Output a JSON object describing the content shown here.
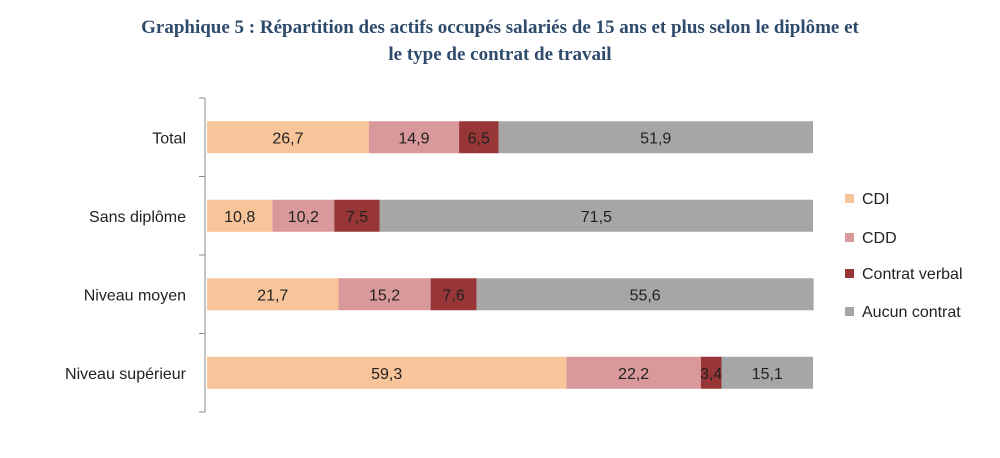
{
  "chart_data": {
    "type": "bar",
    "orientation": "horizontal",
    "stacked": true,
    "title_line1": "Graphique 5 : Répartition des actifs occupés salariés de 15 ans et plus selon le diplôme et",
    "title_line2": "le type de contrat de travail",
    "categories": [
      "Total",
      "Sans diplôme",
      "Niveau moyen",
      "Niveau supérieur"
    ],
    "series": [
      {
        "name": "CDI",
        "color": "#f8c49a",
        "values": [
          26.7,
          10.8,
          21.7,
          59.3
        ],
        "labels": [
          "26,7",
          "10,8",
          "21,7",
          "59,3"
        ]
      },
      {
        "name": "CDD",
        "color": "#d9989a",
        "values": [
          14.9,
          10.2,
          15.2,
          22.2
        ],
        "labels": [
          "14,9",
          "10,2",
          "15,2",
          "22,2"
        ]
      },
      {
        "name": "Contrat verbal",
        "color": "#983536",
        "values": [
          6.5,
          7.5,
          7.6,
          3.4
        ],
        "labels": [
          "6,5",
          "7,5",
          "7,6",
          "3,4"
        ]
      },
      {
        "name": "Aucun contrat",
        "color": "#a6a6a6",
        "values": [
          51.9,
          71.5,
          55.6,
          15.1
        ],
        "labels": [
          "51,9",
          "71,5",
          "55,6",
          "15,1"
        ]
      }
    ],
    "xlim": [
      0,
      100
    ],
    "grid": false,
    "legend": "right"
  }
}
